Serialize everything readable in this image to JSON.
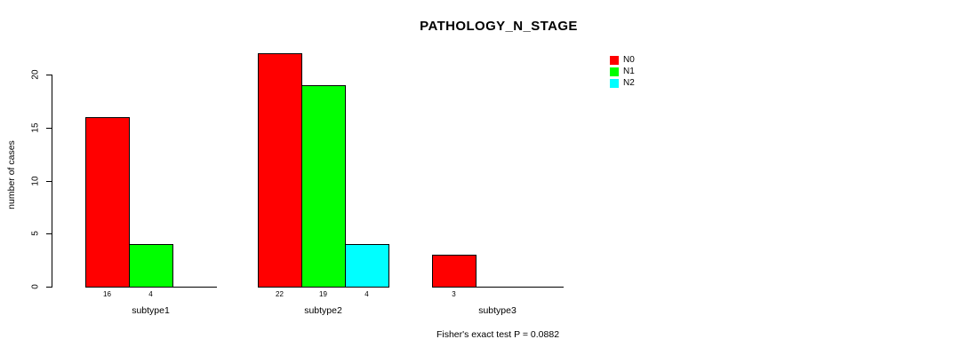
{
  "chart_data": {
    "type": "bar",
    "title": "PATHOLOGY_N_STAGE",
    "ylabel": "number of cases",
    "xlabel": "",
    "ylim": [
      0,
      22
    ],
    "yticks": [
      0,
      5,
      10,
      15,
      20
    ],
    "grid": false,
    "legend_position": "right-of-plot",
    "categories": [
      "subtype1",
      "subtype2",
      "subtype3"
    ],
    "series": [
      {
        "name": "N0",
        "color": "#ff0000",
        "values": [
          16,
          22,
          3
        ]
      },
      {
        "name": "N1",
        "color": "#00ff00",
        "values": [
          4,
          19,
          null
        ]
      },
      {
        "name": "N2",
        "color": "#00ffff",
        "values": [
          null,
          4,
          null
        ]
      }
    ],
    "annotation": "Fisher's exact test P = 0.0882",
    "axis_color": "#000000",
    "background_color": "#ffffff",
    "text_color": "#000000"
  }
}
